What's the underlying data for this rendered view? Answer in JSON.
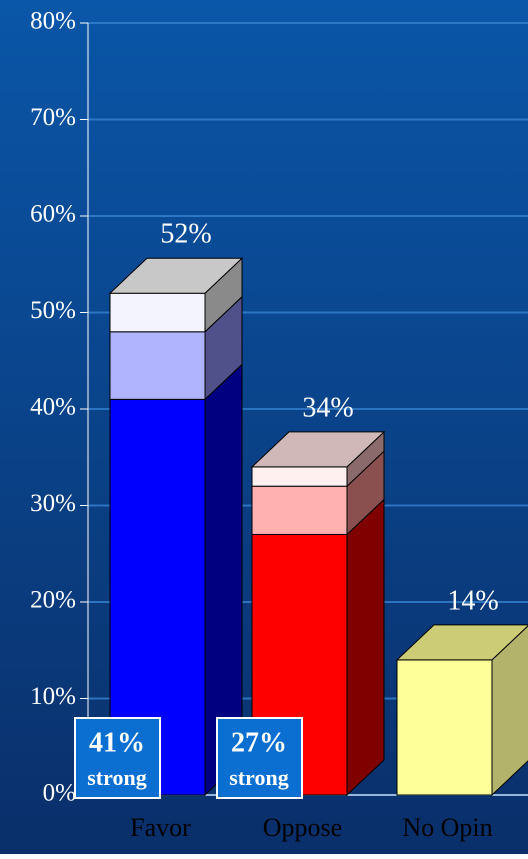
{
  "chart_data": {
    "type": "bar3d_stacked",
    "categories": [
      "Favor",
      "Oppose",
      "No Opin"
    ],
    "series": [
      {
        "values": [
          41,
          27,
          14
        ],
        "value_labels": [
          "41%",
          "27%",
          null
        ],
        "colors": [
          "#0000ff",
          "#ff0000",
          "#ffff99"
        ],
        "side_colors": [
          "#000080",
          "#800000",
          "#b3b36b"
        ]
      },
      {
        "values": [
          7,
          5,
          null
        ],
        "colors": [
          "#b0b4ff",
          "#ffb0b0",
          null
        ],
        "side_colors": [
          "#50508a",
          "#8a5050",
          null
        ]
      },
      {
        "values": [
          4,
          2,
          null
        ],
        "colors": [
          "#f4f4ff",
          "#fff0f0",
          null
        ],
        "side_colors": [
          "#8a8a8a",
          "#8a6a6a",
          null
        ]
      }
    ],
    "top_colors": [
      "#c8c8c8",
      "#d0b8b8",
      "#cccc77"
    ],
    "totals": [
      52,
      34,
      14
    ],
    "total_labels": [
      "52%",
      "34%",
      "14%"
    ],
    "value_label_note": "strong",
    "ylim": [
      0,
      80
    ],
    "yticks": [
      {
        "value": 0,
        "label": "0%"
      },
      {
        "value": 10,
        "label": "10%"
      },
      {
        "value": 20,
        "label": "20%"
      },
      {
        "value": 30,
        "label": "30%"
      },
      {
        "value": 40,
        "label": "40%"
      },
      {
        "value": 50,
        "label": "50%"
      },
      {
        "value": 60,
        "label": "60%"
      },
      {
        "value": 70,
        "label": "70%"
      },
      {
        "value": 80,
        "label": "80%"
      }
    ],
    "grid": true
  }
}
